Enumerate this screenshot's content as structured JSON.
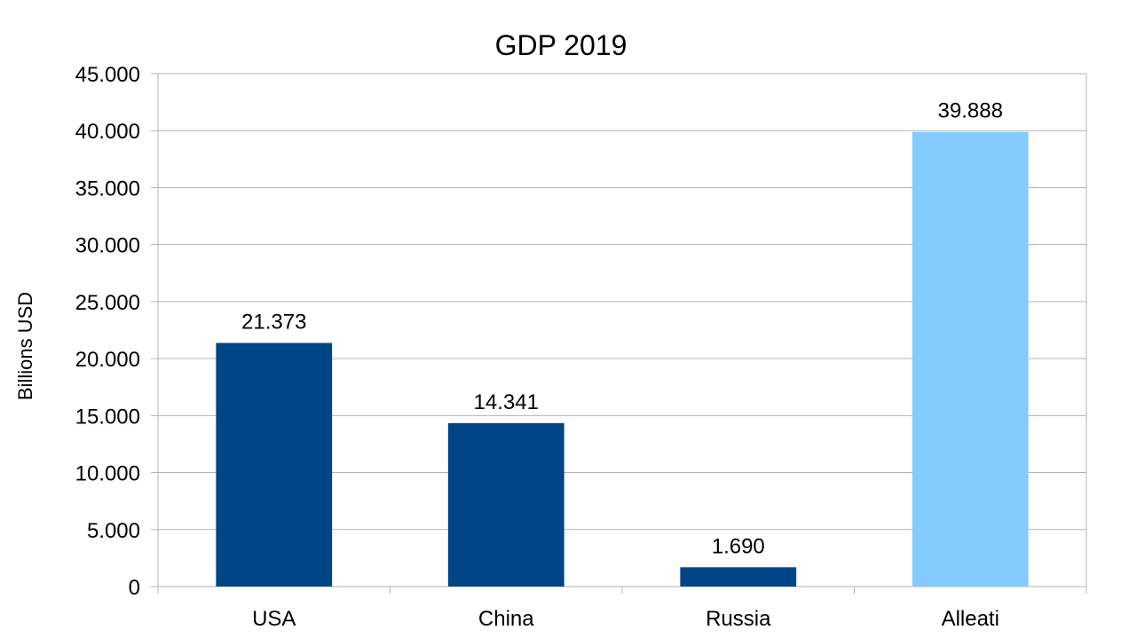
{
  "chart_data": {
    "type": "bar",
    "title": "GDP 2019",
    "xlabel": "",
    "ylabel": "Billions USD",
    "categories": [
      "USA",
      "China",
      "Russia",
      "Alleati"
    ],
    "values": [
      21373,
      14341,
      1690,
      39888
    ],
    "value_labels": [
      "21.373",
      "14.341",
      "1.690",
      "39.888"
    ],
    "bar_colors": [
      "#004586",
      "#004586",
      "#004586",
      "#83caff"
    ],
    "ylim": [
      0,
      45000
    ],
    "yticks": [
      0,
      5000,
      10000,
      15000,
      20000,
      25000,
      30000,
      35000,
      40000,
      45000
    ],
    "ytick_labels": [
      "0",
      "5.000",
      "10.000",
      "15.000",
      "20.000",
      "25.000",
      "30.000",
      "35.000",
      "40.000",
      "45.000"
    ],
    "grid": true,
    "legend": "none"
  }
}
